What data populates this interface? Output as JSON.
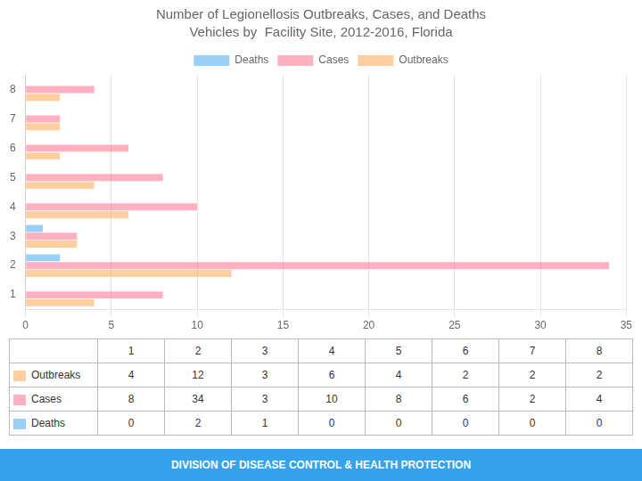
{
  "chart_data": {
    "type": "bar",
    "orientation": "horizontal",
    "title": "Number of Legionellosis Outbreaks, Cases, and Deaths",
    "subtitle": "Vehicles by  Facility Site, 2012-2016, Florida",
    "categories": [
      "1",
      "2",
      "3",
      "4",
      "5",
      "6",
      "7",
      "8"
    ],
    "series": [
      {
        "name": "Deaths",
        "values": [
          0,
          2,
          1,
          0,
          0,
          0,
          0,
          0
        ]
      },
      {
        "name": "Cases",
        "values": [
          8,
          34,
          3,
          10,
          8,
          6,
          2,
          4
        ]
      },
      {
        "name": "Outbreaks",
        "values": [
          4,
          12,
          3,
          6,
          4,
          2,
          2,
          2
        ]
      }
    ],
    "xlim": [
      0,
      35
    ],
    "xticks": [
      0,
      5,
      10,
      15,
      20,
      25,
      30,
      35
    ],
    "grid": true,
    "legend": "top",
    "annotations": [
      "DIVISION OF DISEASE CONTROL & HEALTH PROTECTION"
    ]
  }
}
